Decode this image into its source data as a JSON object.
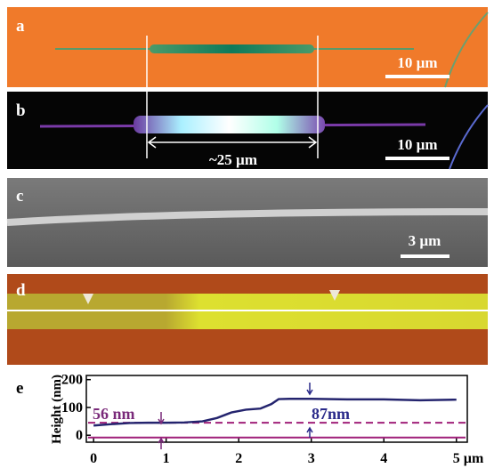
{
  "panels": [
    {
      "label": "a",
      "scale_bar": "10 µm"
    },
    {
      "label": "b",
      "scale_bar": "10 µm",
      "annotation": "~25 µm"
    },
    {
      "label": "c",
      "scale_bar": "3 µm"
    },
    {
      "label": "d"
    }
  ],
  "chart_data": {
    "type": "line",
    "label": "e",
    "y_label": "Height (nm)",
    "x_unit": "µm",
    "x": [
      0,
      0.25,
      0.5,
      0.75,
      1.0,
      1.25,
      1.5,
      1.7,
      1.9,
      2.1,
      2.3,
      2.45,
      2.55,
      2.7,
      3.0,
      3.5,
      4.0,
      4.5,
      5.0
    ],
    "series": [
      {
        "color": "#24246e",
        "values": [
          35,
          40,
          44,
          45,
          45,
          46,
          50,
          62,
          82,
          92,
          96,
          112,
          130,
          131,
          131,
          129,
          129,
          126,
          128
        ]
      }
    ],
    "reference_lines": [
      {
        "value": 45,
        "style": "dashed",
        "color": "#a0207a"
      },
      {
        "value": -8,
        "style": "solid",
        "color": "#a0207a"
      }
    ],
    "annotations": [
      {
        "text": "56 nm",
        "color": "#7a2a7a"
      },
      {
        "text": "87nm",
        "color": "#2a2a8a"
      }
    ],
    "xlim": [
      -0.1,
      5.15
    ],
    "xticks": [
      0,
      1,
      2,
      3,
      4,
      5
    ],
    "ylim": [
      -25,
      215
    ],
    "yticks": [
      0,
      100,
      200
    ]
  }
}
